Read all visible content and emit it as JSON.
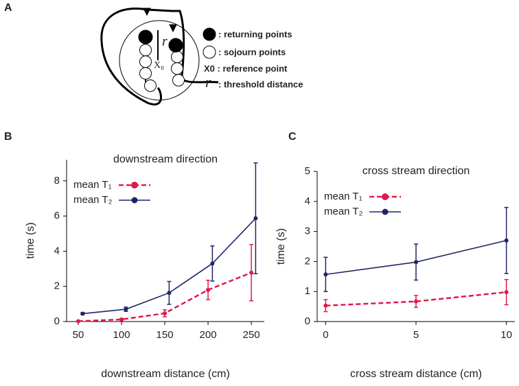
{
  "panel_a": {
    "label": "A",
    "r_label": "r",
    "x0_label": "X₀",
    "legend": [
      ": returning points",
      ": sojourn points",
      "X0 : reference point",
      ": threshold distance"
    ],
    "legend_r": "r"
  },
  "chart_data": [
    {
      "type": "line",
      "panel": "B",
      "title": "downstream direction",
      "x_label": "downstream distance (cm)",
      "y_label": "time (s)",
      "xlim": [
        36.5,
        265
      ],
      "xticks": [
        50,
        100,
        150,
        200,
        250
      ],
      "ylim": [
        0,
        9.2
      ],
      "yticks": [
        0,
        2,
        4,
        6,
        8
      ],
      "legend": "upper left",
      "series": [
        {
          "name": "mean T₁",
          "color": "#e0194a",
          "dashed": true,
          "x": [
            50,
            100,
            150,
            200,
            250
          ],
          "values": [
            0.02,
            0.12,
            0.47,
            1.8,
            2.78
          ],
          "errors": [
            0.02,
            0.04,
            0.2,
            0.55,
            1.6
          ]
        },
        {
          "name": "mean T₂",
          "color": "#1f2466",
          "dashed": false,
          "x": [
            55,
            105,
            155,
            205,
            255
          ],
          "values": [
            0.45,
            0.7,
            1.63,
            3.3,
            5.87
          ],
          "errors": [
            0.06,
            0.12,
            0.65,
            1.0,
            3.15
          ]
        }
      ]
    },
    {
      "type": "line",
      "panel": "C",
      "title": "cross stream direction",
      "x_label": "cross stream distance (cm)",
      "y_label": "time (s)",
      "xlim": [
        -0.47,
        10.47
      ],
      "xticks": [
        0,
        5,
        10
      ],
      "ylim": [
        0,
        5
      ],
      "yticks": [
        0,
        1,
        2,
        3,
        4,
        5
      ],
      "legend": "upper left",
      "series": [
        {
          "name": "mean T₁",
          "color": "#e0194a",
          "dashed": true,
          "x": [
            0,
            5,
            10
          ],
          "values": [
            0.53,
            0.67,
            0.98
          ],
          "errors": [
            0.2,
            0.2,
            0.42
          ]
        },
        {
          "name": "mean T₂",
          "color": "#1f2466",
          "dashed": false,
          "x": [
            0,
            5,
            10
          ],
          "values": [
            1.57,
            1.98,
            2.7
          ],
          "errors": [
            0.57,
            0.6,
            1.1
          ]
        }
      ]
    }
  ]
}
